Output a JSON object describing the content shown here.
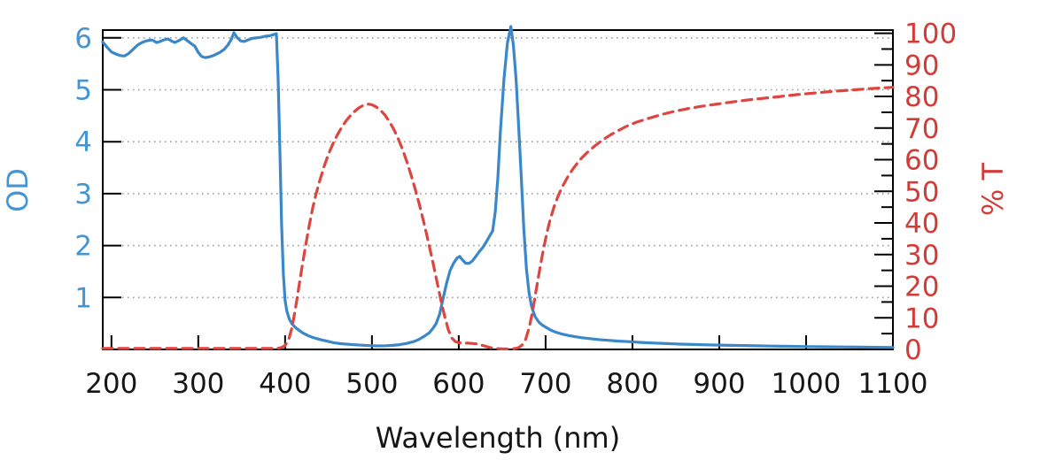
{
  "figure": {
    "background": "#ffffff",
    "frame_color": "#000000",
    "grid_color": "#9a9a9a"
  },
  "chart_data": {
    "type": "line",
    "title": "",
    "xlabel": "Wavelength (nm)",
    "x_axis": {
      "title": "Wavelength (nm)",
      "range": [
        190,
        1100
      ],
      "ticks": [
        200,
        300,
        400,
        500,
        600,
        700,
        800,
        900,
        1000,
        1100
      ],
      "label_color": "#161616"
    },
    "left_axis": {
      "title": "OD",
      "range": [
        0,
        6.15
      ],
      "ticks": [
        1,
        2,
        3,
        4,
        5,
        6
      ],
      "label_color": "#4695d3"
    },
    "right_axis": {
      "title": "% T",
      "range": [
        0,
        101
      ],
      "ticks": [
        0,
        10,
        20,
        30,
        40,
        50,
        60,
        70,
        80,
        90,
        100
      ],
      "minor_tick_step": 5,
      "label_color": "#d23c38"
    },
    "grid": {
      "horizontal_at_left_ticks": true,
      "style": "dotted"
    },
    "legend": "none",
    "series": [
      {
        "name": "OD",
        "axis": "left",
        "color": "#3a87c9",
        "line_style": "solid",
        "points": [
          [
            190,
            5.92
          ],
          [
            195,
            5.82
          ],
          [
            200,
            5.73
          ],
          [
            205,
            5.69
          ],
          [
            210,
            5.66
          ],
          [
            215,
            5.65
          ],
          [
            220,
            5.7
          ],
          [
            225,
            5.78
          ],
          [
            230,
            5.86
          ],
          [
            235,
            5.91
          ],
          [
            240,
            5.94
          ],
          [
            245,
            5.96
          ],
          [
            248,
            5.95
          ],
          [
            252,
            5.91
          ],
          [
            256,
            5.93
          ],
          [
            260,
            5.96
          ],
          [
            265,
            5.98
          ],
          [
            269,
            5.94
          ],
          [
            273,
            5.91
          ],
          [
            278,
            5.95
          ],
          [
            283,
            6.0
          ],
          [
            287,
            5.95
          ],
          [
            291,
            5.9
          ],
          [
            296,
            5.84
          ],
          [
            300,
            5.72
          ],
          [
            304,
            5.64
          ],
          [
            308,
            5.62
          ],
          [
            312,
            5.63
          ],
          [
            316,
            5.65
          ],
          [
            320,
            5.68
          ],
          [
            325,
            5.72
          ],
          [
            330,
            5.78
          ],
          [
            334,
            5.86
          ],
          [
            338,
            5.97
          ],
          [
            341,
            6.1
          ],
          [
            345,
            6.0
          ],
          [
            349,
            5.94
          ],
          [
            353,
            5.93
          ],
          [
            357,
            5.96
          ],
          [
            362,
            5.99
          ],
          [
            367,
            6.0
          ],
          [
            372,
            6.01
          ],
          [
            377,
            6.03
          ],
          [
            382,
            6.04
          ],
          [
            386,
            6.06
          ],
          [
            390,
            6.08
          ],
          [
            392,
            5.2
          ],
          [
            394,
            3.8
          ],
          [
            396,
            2.4
          ],
          [
            398,
            1.45
          ],
          [
            400,
            0.95
          ],
          [
            402,
            0.74
          ],
          [
            405,
            0.58
          ],
          [
            408,
            0.49
          ],
          [
            412,
            0.42
          ],
          [
            416,
            0.37
          ],
          [
            420,
            0.32
          ],
          [
            426,
            0.27
          ],
          [
            432,
            0.23
          ],
          [
            440,
            0.19
          ],
          [
            448,
            0.16
          ],
          [
            456,
            0.13
          ],
          [
            464,
            0.11
          ],
          [
            472,
            0.1
          ],
          [
            480,
            0.09
          ],
          [
            490,
            0.08
          ],
          [
            500,
            0.072
          ],
          [
            508,
            0.068
          ],
          [
            516,
            0.07
          ],
          [
            524,
            0.078
          ],
          [
            532,
            0.092
          ],
          [
            540,
            0.115
          ],
          [
            548,
            0.15
          ],
          [
            554,
            0.19
          ],
          [
            560,
            0.25
          ],
          [
            566,
            0.32
          ],
          [
            570,
            0.4
          ],
          [
            574,
            0.5
          ],
          [
            578,
            0.68
          ],
          [
            582,
            0.98
          ],
          [
            586,
            1.28
          ],
          [
            590,
            1.52
          ],
          [
            594,
            1.66
          ],
          [
            598,
            1.76
          ],
          [
            601,
            1.79
          ],
          [
            604,
            1.73
          ],
          [
            608,
            1.66
          ],
          [
            612,
            1.66
          ],
          [
            616,
            1.71
          ],
          [
            620,
            1.8
          ],
          [
            624,
            1.89
          ],
          [
            628,
            1.97
          ],
          [
            632,
            2.08
          ],
          [
            636,
            2.2
          ],
          [
            639,
            2.28
          ],
          [
            642,
            2.65
          ],
          [
            645,
            3.3
          ],
          [
            648,
            4.2
          ],
          [
            652,
            5.2
          ],
          [
            656,
            5.9
          ],
          [
            660,
            6.22
          ],
          [
            663,
            5.85
          ],
          [
            666,
            5.2
          ],
          [
            669,
            4.3
          ],
          [
            672,
            3.3
          ],
          [
            675,
            2.3
          ],
          [
            678,
            1.55
          ],
          [
            681,
            1.08
          ],
          [
            684,
            0.82
          ],
          [
            688,
            0.63
          ],
          [
            692,
            0.53
          ],
          [
            696,
            0.47
          ],
          [
            700,
            0.43
          ],
          [
            706,
            0.37
          ],
          [
            712,
            0.33
          ],
          [
            718,
            0.3
          ],
          [
            726,
            0.27
          ],
          [
            734,
            0.245
          ],
          [
            742,
            0.225
          ],
          [
            750,
            0.21
          ],
          [
            760,
            0.19
          ],
          [
            772,
            0.175
          ],
          [
            784,
            0.16
          ],
          [
            796,
            0.15
          ],
          [
            810,
            0.135
          ],
          [
            825,
            0.122
          ],
          [
            840,
            0.112
          ],
          [
            855,
            0.103
          ],
          [
            870,
            0.096
          ],
          [
            885,
            0.089
          ],
          [
            900,
            0.083
          ],
          [
            920,
            0.076
          ],
          [
            940,
            0.07
          ],
          [
            960,
            0.064
          ],
          [
            980,
            0.059
          ],
          [
            1000,
            0.055
          ],
          [
            1020,
            0.051
          ],
          [
            1040,
            0.047
          ],
          [
            1060,
            0.044
          ],
          [
            1080,
            0.041
          ],
          [
            1100,
            0.038
          ]
        ]
      },
      {
        "name": "% T",
        "axis": "right",
        "color": "#dc4540",
        "line_style": "dashed",
        "points": [
          [
            190,
            0.3
          ],
          [
            220,
            0.3
          ],
          [
            250,
            0.3
          ],
          [
            280,
            0.3
          ],
          [
            310,
            0.3
          ],
          [
            340,
            0.3
          ],
          [
            365,
            0.3
          ],
          [
            385,
            0.3
          ],
          [
            392,
            0.4
          ],
          [
            396,
            0.6
          ],
          [
            400,
            1.2
          ],
          [
            404,
            3.0
          ],
          [
            408,
            7.0
          ],
          [
            412,
            13
          ],
          [
            416,
            20
          ],
          [
            420,
            27
          ],
          [
            424,
            33.5
          ],
          [
            428,
            39.5
          ],
          [
            432,
            45
          ],
          [
            436,
            49.5
          ],
          [
            440,
            53.5
          ],
          [
            445,
            58
          ],
          [
            450,
            61.8
          ],
          [
            455,
            65
          ],
          [
            460,
            67.8
          ],
          [
            465,
            70.2
          ],
          [
            470,
            72.2
          ],
          [
            475,
            73.9
          ],
          [
            480,
            75.3
          ],
          [
            485,
            76.4
          ],
          [
            490,
            77.2
          ],
          [
            495,
            77.6
          ],
          [
            500,
            77.4
          ],
          [
            505,
            76.7
          ],
          [
            510,
            75.6
          ],
          [
            515,
            74.1
          ],
          [
            520,
            72.1
          ],
          [
            525,
            69.7
          ],
          [
            530,
            66.8
          ],
          [
            535,
            63.4
          ],
          [
            540,
            59.5
          ],
          [
            545,
            55.2
          ],
          [
            550,
            50.5
          ],
          [
            555,
            45.4
          ],
          [
            560,
            39.9
          ],
          [
            565,
            34.0
          ],
          [
            570,
            27.8
          ],
          [
            575,
            21.3
          ],
          [
            580,
            14.8
          ],
          [
            584,
            10.2
          ],
          [
            588,
            6.2
          ],
          [
            592,
            3.6
          ],
          [
            596,
            2.5
          ],
          [
            600,
            2.1
          ],
          [
            605,
            2.0
          ],
          [
            610,
            2.0
          ],
          [
            615,
            1.9
          ],
          [
            620,
            1.75
          ],
          [
            625,
            1.45
          ],
          [
            630,
            1.05
          ],
          [
            635,
            0.65
          ],
          [
            640,
            0.38
          ],
          [
            645,
            0.24
          ],
          [
            650,
            0.18
          ],
          [
            655,
            0.15
          ],
          [
            660,
            0.16
          ],
          [
            665,
            0.28
          ],
          [
            669,
            0.6
          ],
          [
            673,
            1.4
          ],
          [
            677,
            3.2
          ],
          [
            681,
            6.8
          ],
          [
            685,
            12
          ],
          [
            689,
            18.5
          ],
          [
            693,
            25
          ],
          [
            697,
            31
          ],
          [
            701,
            36.3
          ],
          [
            705,
            40.8
          ],
          [
            710,
            45.3
          ],
          [
            715,
            48.9
          ],
          [
            720,
            51.8
          ],
          [
            726,
            54.8
          ],
          [
            732,
            57.3
          ],
          [
            740,
            60.1
          ],
          [
            748,
            62.3
          ],
          [
            756,
            64.2
          ],
          [
            765,
            66.1
          ],
          [
            775,
            67.9
          ],
          [
            785,
            69.4
          ],
          [
            795,
            70.8
          ],
          [
            805,
            71.9
          ],
          [
            820,
            73.2
          ],
          [
            835,
            74.4
          ],
          [
            850,
            75.4
          ],
          [
            865,
            76.2
          ],
          [
            880,
            76.9
          ],
          [
            895,
            77.5
          ],
          [
            910,
            78.1
          ],
          [
            930,
            78.8
          ],
          [
            950,
            79.4
          ],
          [
            970,
            80.0
          ],
          [
            990,
            80.6
          ],
          [
            1010,
            81.1
          ],
          [
            1030,
            81.6
          ],
          [
            1050,
            82.0
          ],
          [
            1075,
            82.5
          ],
          [
            1100,
            82.9
          ]
        ]
      }
    ]
  }
}
